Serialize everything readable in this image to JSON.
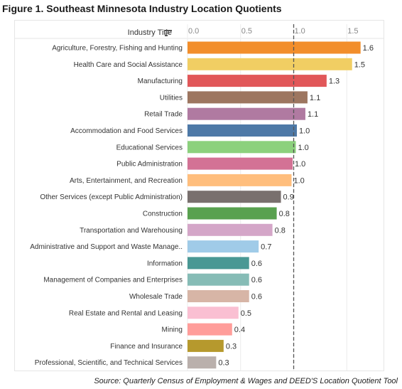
{
  "title": "Figure 1. Southeast Minnesota Industry Location Quotients",
  "source": "Source: Quarterly Census of Employment & Wages and DEED'S Location Quotient Tool",
  "header": {
    "column_label": "Industry Title",
    "sort_icon": "sort-descending-icon"
  },
  "chart_data": {
    "type": "bar",
    "orientation": "horizontal",
    "categories": [
      "Agriculture, Forestry, Fishing and Hunting",
      "Health Care and Social Assistance",
      "Manufacturing",
      "Utilities",
      "Retail Trade",
      "Accommodation and Food Services",
      "Educational Services",
      "Public Administration",
      "Arts, Entertainment, and Recreation",
      "Other Services (except Public Administration)",
      "Construction",
      "Transportation and Warehousing",
      "Administrative and Support and Waste Manage..",
      "Information",
      "Management of Companies and Enterprises",
      "Wholesale Trade",
      "Real Estate and Rental and Leasing",
      "Mining",
      "Finance and Insurance",
      "Professional, Scientific, and Technical Services"
    ],
    "values": [
      1.63,
      1.55,
      1.31,
      1.13,
      1.11,
      1.03,
      1.02,
      0.99,
      0.98,
      0.88,
      0.84,
      0.8,
      0.67,
      0.58,
      0.58,
      0.58,
      0.48,
      0.42,
      0.34,
      0.27
    ],
    "value_labels": [
      "1.6",
      "1.5",
      "1.3",
      "1.1",
      "1.1",
      "1.0",
      "1.0",
      "1.0",
      "1.0",
      "0.9",
      "0.8",
      "0.8",
      "0.7",
      "0.6",
      "0.6",
      "0.6",
      "0.5",
      "0.4",
      "0.3",
      "0.3"
    ],
    "colors": [
      "#f28e2b",
      "#f1ce63",
      "#e15759",
      "#9d7660",
      "#b07aa1",
      "#4e79a7",
      "#8cd17d",
      "#d37295",
      "#ffbe7d",
      "#79706e",
      "#59a14f",
      "#d4a6c8",
      "#a0cbe8",
      "#499894",
      "#86bcb6",
      "#d7b5a6",
      "#fabfd2",
      "#ff9d9a",
      "#b6992d",
      "#bab0ac"
    ],
    "x_ticks": [
      "0.0",
      "0.5",
      "1.0",
      "1.5"
    ],
    "x_tick_values": [
      0,
      0.5,
      1.0,
      1.5
    ],
    "xlim": [
      0,
      1.75
    ],
    "reference_line": 1.0,
    "grid": "vertical",
    "legend": "none"
  }
}
